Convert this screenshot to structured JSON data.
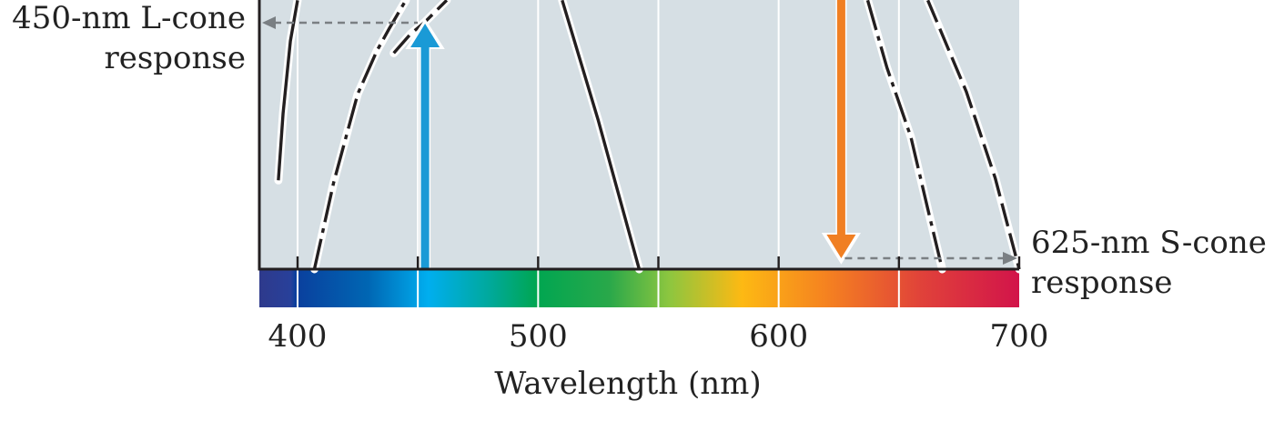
{
  "annotations": {
    "left": {
      "line1": "450-nm L-cone",
      "line2": "response"
    },
    "right": {
      "line1": "625-nm S-cone",
      "line2": "response"
    }
  },
  "chart_data": {
    "type": "line",
    "xlabel": "Wavelength (nm)",
    "xlim": [
      385,
      700
    ],
    "xticks": [
      400,
      500,
      600,
      700
    ],
    "stimulus_arrows": [
      {
        "wavelength": 453,
        "color": "#1a9ad6",
        "direction": "up"
      },
      {
        "wavelength": 626,
        "color": "#f07f23",
        "direction": "down"
      }
    ],
    "readouts": [
      {
        "name": "450-nm L-cone response",
        "from_wavelength": 453,
        "to": "y-axis"
      },
      {
        "name": "625-nm S-cone response",
        "from_wavelength": 626,
        "to": "x-end"
      }
    ],
    "curves": [
      {
        "style": "solid",
        "points": [
          [
            392,
            0.37
          ],
          [
            394,
            0.65
          ],
          [
            397,
            0.95
          ],
          [
            400,
            1.12
          ]
        ]
      },
      {
        "style": "dash-dot",
        "points": [
          [
            407,
            0.0
          ],
          [
            415,
            0.36
          ],
          [
            425,
            0.73
          ],
          [
            433,
            0.91
          ],
          [
            438,
            1.0
          ],
          [
            445,
            1.12
          ]
        ]
      },
      {
        "style": "long-dash",
        "points": [
          [
            440,
            0.9
          ],
          [
            447,
            0.98
          ],
          [
            453,
            1.03
          ],
          [
            457,
            1.07
          ],
          [
            462,
            1.12
          ]
        ]
      },
      {
        "style": "solid",
        "points": [
          [
            510,
            1.12
          ],
          [
            525,
            0.62
          ],
          [
            542,
            0.0
          ]
        ]
      },
      {
        "style": "dash-dot",
        "points": [
          [
            637,
            1.12
          ],
          [
            645,
            0.84
          ],
          [
            655,
            0.55
          ],
          [
            662,
            0.25
          ],
          [
            668,
            0.0
          ]
        ]
      },
      {
        "style": "long-dash",
        "points": [
          [
            662,
            1.12
          ],
          [
            678,
            0.74
          ],
          [
            690,
            0.38
          ],
          [
            700,
            0.0
          ]
        ]
      }
    ],
    "spectrum_stops": [
      {
        "wavelength": 385,
        "color": "#2e3a8c"
      },
      {
        "wavelength": 398,
        "color": "#28409a"
      },
      {
        "wavelength": 400,
        "color": "#0a3f9d"
      },
      {
        "wavelength": 430,
        "color": "#0066b3"
      },
      {
        "wavelength": 455,
        "color": "#00aeef"
      },
      {
        "wavelength": 480,
        "color": "#00a99d"
      },
      {
        "wavelength": 500,
        "color": "#00a651"
      },
      {
        "wavelength": 530,
        "color": "#29a84a"
      },
      {
        "wavelength": 555,
        "color": "#8dc63f"
      },
      {
        "wavelength": 585,
        "color": "#fdb913"
      },
      {
        "wavelength": 620,
        "color": "#f58220"
      },
      {
        "wavelength": 660,
        "color": "#e0413a"
      },
      {
        "wavelength": 700,
        "color": "#d2144a"
      }
    ],
    "colors": {
      "plot_background": "#d6dfe4",
      "gridline": "#ffffff",
      "curve": "#231f20",
      "readout_arrow": "#7a7f83"
    }
  }
}
